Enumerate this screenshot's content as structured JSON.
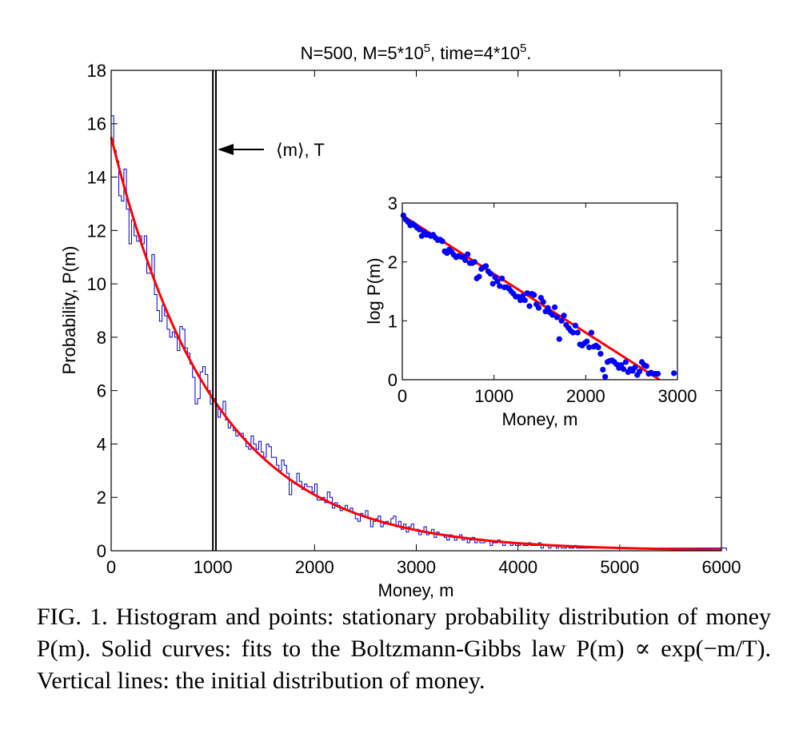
{
  "figure": {
    "caption": "FIG. 1. Histogram and points: stationary probability distribution of money P(m). Solid curves: fits to the Boltzmann-Gibbs law P(m) ∝ exp(−m/T). Vertical lines: the initial distribution of money."
  },
  "chart_data": [
    {
      "type": "line",
      "title": "N=500, M=5*10^5, time=4*10^5.",
      "title_parts": {
        "n": "N=500, M=5*10",
        "m_exp": "5",
        "mid": ", time=4*10",
        "t_exp": "5",
        "end": "."
      },
      "xlabel": "Money, m",
      "ylabel": "Probability, P(m)",
      "xlim": [
        0,
        6000
      ],
      "ylim": [
        0,
        18
      ],
      "xticks": [
        0,
        1000,
        2000,
        3000,
        4000,
        5000,
        6000
      ],
      "yticks": [
        0,
        2,
        4,
        6,
        8,
        10,
        12,
        14,
        16,
        18
      ],
      "grid": false,
      "annotation": "⟨m⟩, T",
      "vertical_lines": [
        1000,
        1030
      ],
      "series": [
        {
          "kind": "histogram",
          "color": "#0000cc",
          "bin_width": 25,
          "x_start": 0,
          "values": [
            16.3,
            15.0,
            14.6,
            13.3,
            13.1,
            14.3,
            12.8,
            11.5,
            12.4,
            11.8,
            11.6,
            11.8,
            11.5,
            11.8,
            10.4,
            10.4,
            11.1,
            9.6,
            9.0,
            8.6,
            9.2,
            8.8,
            8.3,
            8.0,
            8.2,
            8.0,
            7.5,
            8.4,
            8.3,
            7.6,
            7.4,
            7.0,
            6.5,
            5.5,
            5.7,
            6.7,
            6.9,
            6.6,
            6.0,
            5.5,
            5.7,
            5.4,
            5.0,
            5.3,
            5.6,
            4.9,
            4.6,
            4.7,
            4.5,
            4.3,
            4.4,
            4.4,
            4.2,
            3.9,
            3.8,
            4.3,
            4.0,
            3.8,
            4.1,
            3.7,
            3.5,
            4.0,
            3.9,
            3.5,
            3.5,
            3.2,
            3.0,
            3.4,
            3.2,
            2.9,
            2.1,
            2.6,
            2.5,
            2.9,
            2.6,
            2.3,
            2.5,
            2.4,
            2.4,
            2.2,
            2.5,
            1.9,
            1.9,
            2.0,
            1.8,
            2.2,
            2.0,
            1.6,
            1.8,
            1.7,
            1.5,
            1.6,
            1.7,
            1.5,
            1.6,
            1.4,
            1.2,
            1.1,
            1.4,
            1.3,
            1.5,
            1.2,
            0.9,
            1.1,
            1.2,
            1.3,
            0.9,
            1.0,
            1.1,
            1.0,
            1.2,
            1.3,
            0.9,
            1.1,
            0.8,
            1.0,
            0.7,
            0.9,
            1.0,
            0.8,
            0.8,
            0.6,
            0.7,
            0.9,
            0.6,
            0.7,
            0.8,
            0.5,
            0.7,
            0.6,
            0.6,
            0.5,
            0.4,
            0.6,
            0.5,
            0.4,
            0.5,
            0.6,
            0.4,
            0.5,
            0.3,
            0.4,
            0.5,
            0.3,
            0.4,
            0.3,
            0.3,
            0.4,
            0.4,
            0.2,
            0.3,
            0.3,
            0.4,
            0.3,
            0.2,
            0.3,
            0.3,
            0.2,
            0.3,
            0.2,
            0.2,
            0.3,
            0.2,
            0.2,
            0.3,
            0.2,
            0.2,
            0.2,
            0.3,
            0.1,
            0.2,
            0.2,
            0.1,
            0.2,
            0.2,
            0.1,
            0.2,
            0.1,
            0.1,
            0.2,
            0.1,
            0.1,
            0.2,
            0.1,
            0.1,
            0.1,
            0.1,
            0.1,
            0.1,
            0.1,
            0.1,
            0.1,
            0.1,
            0.1,
            0.1,
            0.1,
            0.1,
            0.1,
            0.1,
            0.1,
            0.1,
            0.1,
            0.1,
            0.1,
            0.1,
            0.1,
            0.1,
            0.1,
            0.1,
            0.1,
            0.1,
            0.1,
            0.1,
            0.1,
            0.1,
            0.1,
            0.1,
            0.1,
            0.1,
            0.1,
            0.1,
            0.1,
            0.1,
            0.1,
            0.1,
            0.1,
            0.1,
            0.1,
            0.1,
            0.1,
            0.1,
            0.1,
            0.1,
            0.1,
            0.1,
            0.1,
            0.1,
            0.1,
            0.1,
            0.1,
            0.1,
            0.1
          ]
        },
        {
          "kind": "fit",
          "color": "#ff0000",
          "formula": "P0*exp(-m/T)",
          "P0": 15.5,
          "T": 1000
        }
      ]
    },
    {
      "type": "scatter",
      "title": "",
      "xlabel": "Money, m",
      "ylabel": "log P(m)",
      "xlim": [
        0,
        3000
      ],
      "ylim": [
        0,
        3
      ],
      "xticks": [
        0,
        1000,
        2000,
        3000
      ],
      "yticks": [
        0,
        1,
        2,
        3
      ],
      "grid": false,
      "series": [
        {
          "kind": "points",
          "color": "#0000ff",
          "x": [
            12,
            37,
            62,
            87,
            112,
            137,
            162,
            187,
            212,
            237,
            262,
            287,
            312,
            337,
            362,
            387,
            412,
            437,
            462,
            487,
            512,
            537,
            562,
            587,
            612,
            637,
            662,
            687,
            712,
            737,
            762,
            787,
            812,
            837,
            862,
            887,
            912,
            937,
            962,
            987,
            1012,
            1037,
            1062,
            1087,
            1112,
            1137,
            1162,
            1187,
            1212,
            1237,
            1262,
            1287,
            1312,
            1337,
            1362,
            1387,
            1412,
            1437,
            1462,
            1487,
            1512,
            1537,
            1562,
            1587,
            1612,
            1637,
            1662,
            1687,
            1712,
            1737,
            1762,
            1787,
            1812,
            1837,
            1862,
            1887,
            1912,
            1937,
            1962,
            1987,
            2012,
            2037,
            2062,
            2087,
            2112,
            2137,
            2162,
            2187,
            2212,
            2237,
            2262,
            2287,
            2312,
            2337,
            2362,
            2387,
            2412,
            2437,
            2462,
            2487,
            2512,
            2537,
            2562,
            2587,
            2612,
            2637,
            2662,
            2687,
            2712,
            2737,
            2762,
            2787,
            2962
          ],
          "y": [
            2.79,
            2.72,
            2.68,
            2.62,
            2.65,
            2.62,
            2.58,
            2.55,
            2.44,
            2.51,
            2.46,
            2.46,
            2.44,
            2.46,
            2.41,
            2.37,
            2.38,
            2.35,
            2.18,
            2.15,
            2.21,
            2.17,
            2.12,
            2.08,
            2.1,
            2.09,
            2.08,
            2.03,
            2.13,
            1.98,
            1.98,
            2.0,
            1.72,
            1.75,
            1.88,
            1.91,
            1.93,
            1.84,
            1.8,
            1.63,
            1.74,
            1.67,
            1.59,
            1.72,
            1.57,
            1.57,
            1.55,
            1.5,
            1.46,
            1.41,
            1.41,
            1.35,
            1.42,
            1.35,
            1.47,
            1.25,
            1.46,
            1.44,
            1.28,
            1.22,
            1.39,
            1.32,
            1.16,
            1.22,
            1.14,
            1.1,
            1.23,
            1.06,
            0.69,
            1.0,
            1.09,
            0.93,
            0.88,
            0.83,
            0.8,
            0.92,
            0.8,
            0.6,
            0.58,
            0.62,
            0.65,
            0.55,
            0.8,
            0.56,
            0.58,
            0.55,
            0.44,
            0.17,
            0.05,
            0.3,
            0.32,
            0.33,
            0.3,
            0.26,
            0.2,
            0.25,
            0.18,
            0.3,
            0.13,
            0.18,
            0.15,
            0.21,
            0.08,
            0.14,
            0.3,
            0.25,
            0.23,
            0.1,
            0.12,
            0.1,
            0.1,
            0.1,
            0.11
          ]
        },
        {
          "kind": "fit",
          "color": "#ff0000",
          "formula": "a + b*m",
          "a": 2.79,
          "b": -0.000995
        }
      ]
    }
  ]
}
